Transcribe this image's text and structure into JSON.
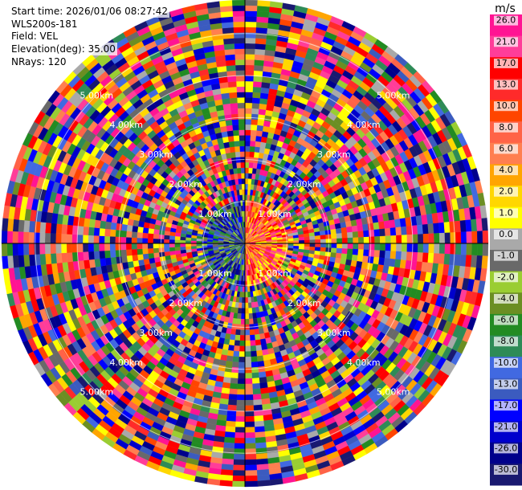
{
  "header": {
    "start_time": "Start time: 2026/01/06 08:27:42",
    "instrument": "WLS200s-181",
    "field": "Field: VEL",
    "elevation": "Elevation(deg): 35.00",
    "nrays": "NRays: 120"
  },
  "chart_data": {
    "type": "heatmap",
    "projection": "polar-ppi",
    "units": "m/s",
    "range_max_km": 5.8,
    "rings_km": [
      1.0,
      2.0,
      3.0,
      4.0,
      5.0
    ],
    "ring_labels": [
      "1.00km",
      "2.00km",
      "3.00km",
      "4.00km",
      "5.00km"
    ],
    "n_rays": 120,
    "range_gates": 45,
    "colorbar": {
      "label": "m/s",
      "ticks": [
        "26.0",
        "21.0",
        "17.0",
        "13.0",
        "10.0",
        "8.0",
        "6.0",
        "4.0",
        "2.0",
        "1.0",
        "0.0",
        "-1.0",
        "-2.0",
        "-4.0",
        "-6.0",
        "-8.0",
        "-10.0",
        "-13.0",
        "-17.0",
        "-21.0",
        "-26.0",
        "-30.0"
      ],
      "colors": [
        "#ff1493",
        "#ff3d99",
        "#ff0000",
        "#ff2a2a",
        "#ff4500",
        "#ff6347",
        "#ff7f50",
        "#ffa500",
        "#ffd700",
        "#ffff00",
        "#a9a9a9",
        "#696969",
        "#9acd32",
        "#6b8e23",
        "#228b22",
        "#2e8b57",
        "#4169e1",
        "#3b5bbf",
        "#0000ff",
        "#0000cd",
        "#00008b",
        "#191970"
      ]
    }
  }
}
